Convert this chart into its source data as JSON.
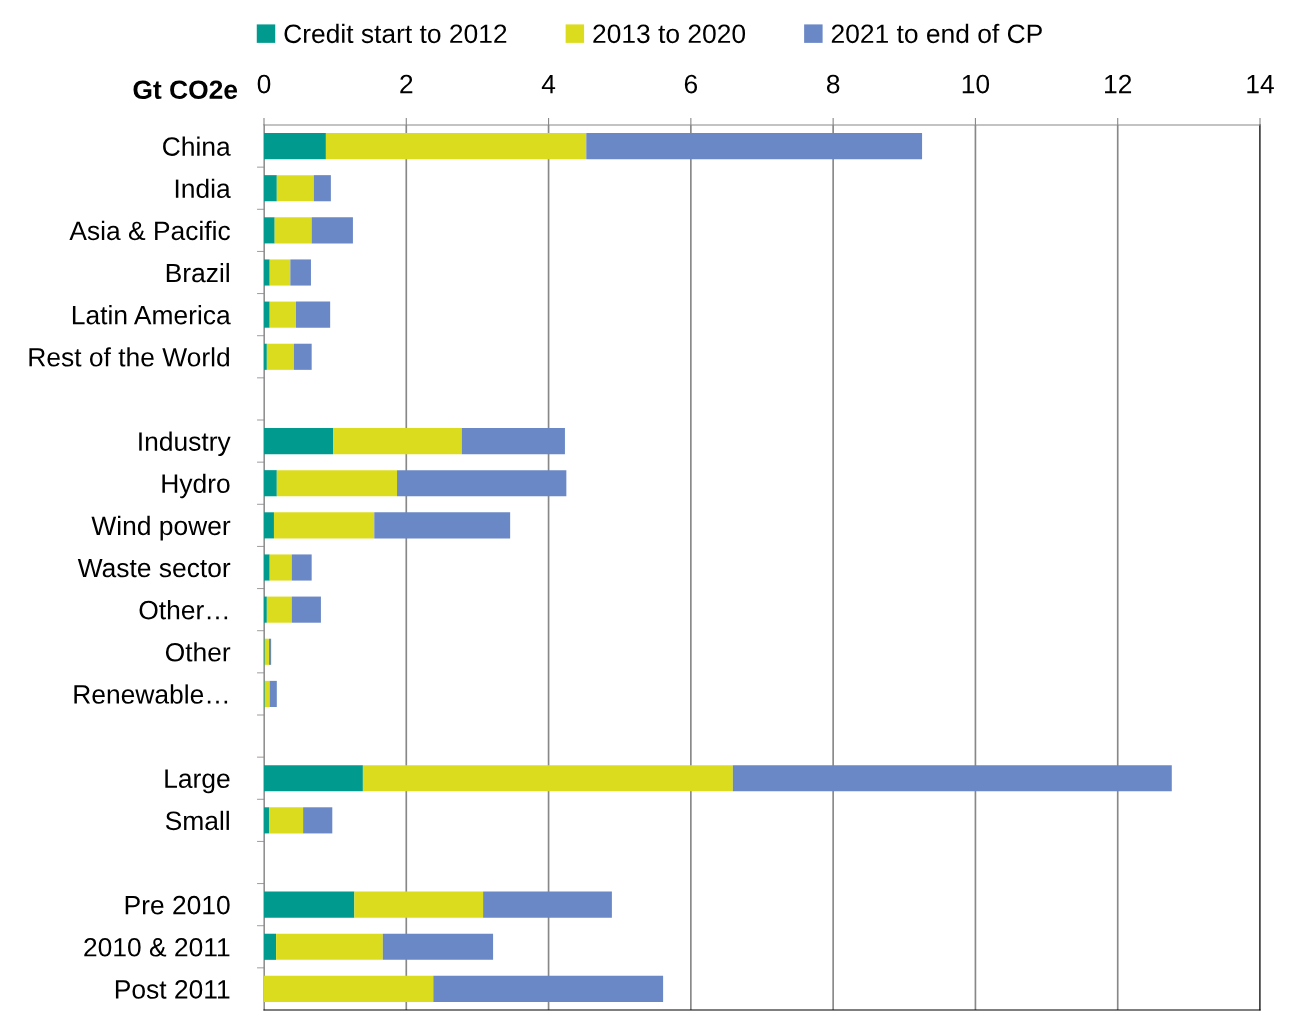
{
  "chart_data": {
    "type": "bar",
    "orientation": "horizontal",
    "stacked": true,
    "xlabel": "Gt CO2e",
    "categories": [
      "China",
      "India",
      "Asia & Pacific",
      "Brazil",
      "Latin America",
      "Rest of the World",
      null,
      "Industry",
      "Hydro",
      "Wind power",
      "Waste sector",
      "Other…",
      "Other",
      "Renewable…",
      null,
      "Large",
      "Small",
      null,
      "Pre 2010",
      "2010 & 2011",
      "Post 2011"
    ],
    "series": [
      {
        "name": "Credit start to 2012",
        "color": "#009a8e",
        "values": [
          0.87,
          0.18,
          0.15,
          0.08,
          0.08,
          0.04,
          null,
          0.97,
          0.18,
          0.14,
          0.08,
          0.04,
          0.01,
          0.01,
          null,
          1.39,
          0.07,
          null,
          1.27,
          0.17,
          0
        ]
      },
      {
        "name": "2013 to 2020",
        "color": "#dcdc1e",
        "values": [
          3.66,
          0.52,
          0.52,
          0.29,
          0.37,
          0.38,
          null,
          1.81,
          1.69,
          1.41,
          0.31,
          0.35,
          0.06,
          0.07,
          null,
          5.2,
          0.48,
          null,
          1.81,
          1.5,
          2.38
        ]
      },
      {
        "name": "2021 to end of CP",
        "color": "#6a87c6",
        "values": [
          4.72,
          0.24,
          0.58,
          0.29,
          0.48,
          0.25,
          null,
          1.45,
          2.38,
          1.91,
          0.28,
          0.41,
          0.03,
          0.1,
          null,
          6.17,
          0.41,
          null,
          1.81,
          1.55,
          3.23
        ]
      }
    ],
    "xlim": [
      0,
      14
    ],
    "xticks": [
      0,
      2,
      4,
      6,
      8,
      10,
      12,
      14
    ],
    "grid": "x",
    "legend": "top"
  }
}
